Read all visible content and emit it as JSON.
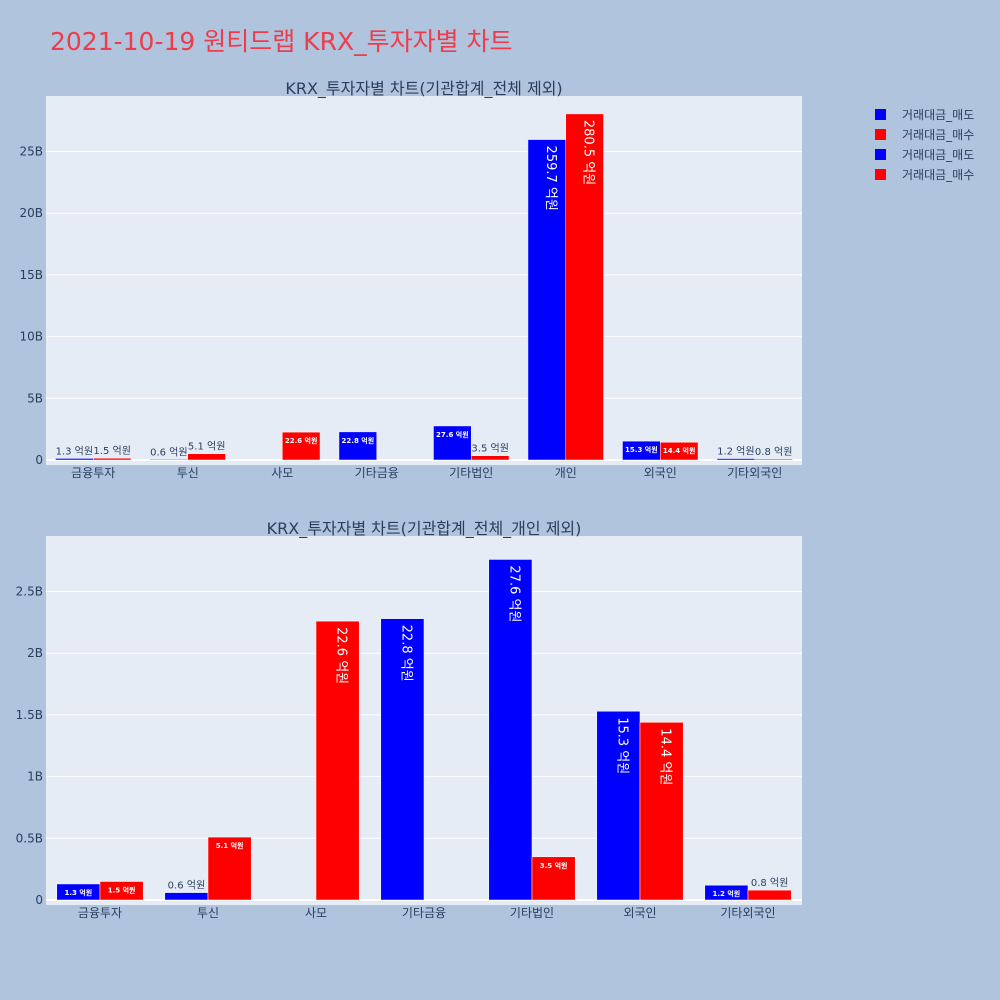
{
  "page_title": "2021-10-19 원티드랩 KRX_투자자별 차트",
  "legend": [
    {
      "label": "거래대금_매도",
      "color": "#0000ff"
    },
    {
      "label": "거래대금_매수",
      "color": "#ff0000"
    },
    {
      "label": "거래대금_매도",
      "color": "#0000ff"
    },
    {
      "label": "거래대금_매수",
      "color": "#ff0000"
    }
  ],
  "chart_data": [
    {
      "type": "bar",
      "title": "KRX_투자자별 차트(기관합계_전체 제외)",
      "categories": [
        "금융투자",
        "투신",
        "사모",
        "기타금융",
        "기타법인",
        "개인",
        "외국인",
        "기타외국인"
      ],
      "series": [
        {
          "name": "거래대금_매도",
          "color": "#0000ff",
          "values": [
            130000000,
            60000000,
            0,
            2280000000,
            2760000000,
            25970000000,
            1530000000,
            120000000
          ],
          "labels": [
            "1.3 억원",
            "0.6 억원",
            "",
            "22.8 억원",
            "27.6 억원",
            "259.7 억원",
            "15.3 억원",
            "1.2 억원"
          ]
        },
        {
          "name": "거래대금_매수",
          "color": "#ff0000",
          "values": [
            150000000,
            510000000,
            2260000000,
            0,
            350000000,
            28050000000,
            1440000000,
            80000000
          ],
          "labels": [
            "1.5 억원",
            "5.1 억원",
            "22.6 억원",
            "",
            "3.5 억원",
            "280.5 억원",
            "14.4 억원",
            "0.8 억원"
          ]
        }
      ],
      "ylim": [
        0,
        29500000000
      ],
      "yticks": [
        0,
        5000000000,
        10000000000,
        15000000000,
        20000000000,
        25000000000
      ],
      "ytick_labels": [
        "0",
        "5B",
        "10B",
        "15B",
        "20B",
        "25B"
      ],
      "grid": true
    },
    {
      "type": "bar",
      "title": "KRX_투자자별 차트(기관합계_전체_개인 제외)",
      "categories": [
        "금융투자",
        "투신",
        "사모",
        "기타금융",
        "기타법인",
        "외국인",
        "기타외국인"
      ],
      "series": [
        {
          "name": "거래대금_매도",
          "color": "#0000ff",
          "values": [
            130000000,
            60000000,
            0,
            2280000000,
            2760000000,
            1530000000,
            120000000
          ],
          "labels": [
            "1.3 억원",
            "0.6 억원",
            "",
            "22.8 억원",
            "27.6 억원",
            "15.3 억원",
            "1.2 억원"
          ]
        },
        {
          "name": "거래대금_매수",
          "color": "#ff0000",
          "values": [
            150000000,
            510000000,
            2260000000,
            0,
            350000000,
            1440000000,
            80000000
          ],
          "labels": [
            "1.5 억원",
            "5.1 억원",
            "22.6 억원",
            "",
            "3.5 억원",
            "14.4 억원",
            "0.8 억원"
          ]
        }
      ],
      "ylim": [
        0,
        2950000000
      ],
      "yticks": [
        0,
        500000000,
        1000000000,
        1500000000,
        2000000000,
        2500000000
      ],
      "ytick_labels": [
        "0",
        "0.5B",
        "1B",
        "1.5B",
        "2B",
        "2.5B"
      ],
      "grid": true
    }
  ]
}
